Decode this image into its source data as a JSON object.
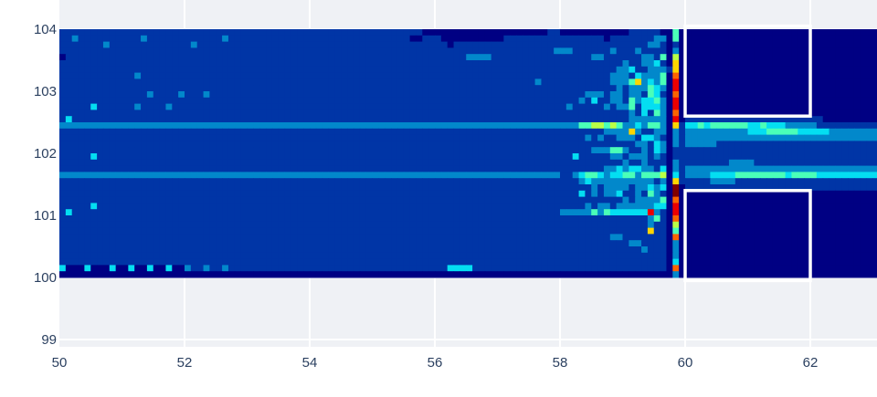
{
  "chart_data": {
    "type": "heatmap",
    "title": "",
    "xlabel": "",
    "ylabel": "",
    "xlim": [
      50,
      63.1
    ],
    "ylim": [
      98.8,
      104.5
    ],
    "x_ticks": [
      "50",
      "52",
      "54",
      "56",
      "58",
      "60",
      "62"
    ],
    "x_tick_values": [
      50,
      52,
      54,
      56,
      58,
      60,
      62
    ],
    "y_ticks": [
      "99",
      "100",
      "101",
      "102",
      "103",
      "104"
    ],
    "y_tick_values": [
      99,
      100,
      101,
      102,
      103,
      104
    ],
    "grid": true,
    "colorscale": "Jet",
    "zmin": 0,
    "zmax": 9,
    "x_start": 50,
    "dx": 0.1,
    "y_start": 104,
    "dy": -0.1,
    "z_rows": [
      "1111111111 1111111111 1111111111 1111111111 1111111111 1111111100 0000000000 0000000011 000000000001111100 4 0 0000000000000000 0000000000000000",
      "1121111111 1112111111 1111112111 1111111111 1111111111 1111110011 1000000000 0111111111 111111101111111220 4 0 0000000000000000 0000000000000000",
      "1111111211 1111111111 1211111111 1111111111 1111111111 1111111111 1101111111 1111111111 111111111111112210 1 0 0000000000000000 0000000000000000",
      "1111111111 1111111111 1111111111 1111111111 1111111111 1111111111 1111111111 1111111112 221111112111211110 2 0 0000000000000000 0000000000000000",
      "0111111111 1111111111 1111111111 1111111111 1111111111 1111111111 1111122221 1111111111 111112211111122140 5 0 0000000000000000 0000000000000000",
      "1111111111 1111111111 1111111111 1111111111 1111111111 1111111111 1111111111 1111111111 111111111121122310 6 0 0000000000000000 0000000000000000",
      "1111111111 1111111111 1111111111 1111111111 1111111111 1111111111 1111111111 1111111111 111111111223112221 6 0 0000000000000000 0000000000000000",
      "1111111111 1121111111 1111111111 1111111111 1111111111 1111111111 1111111111 1111111111 111111112221322240 7 0 0000000000000000 0000000000000000",
      "1111111111 1111111111 1111111111 1111111111 1111111111 1111111111 1111111111 1111112111 111111112224623240 8 0 0000000000000000 0000000000000000",
      "1111111111 1111111111 1111111111 1111111111 1111111111 1111111111 1111111111 1111111111 111111111212224320 8 0 0000000000000000 0000000000000000",
      "1111111111 1111211112 1112111111 1111111111 1111111111 1111111111 1111111111 1111111111 111122212212214310 7 0 0000000000000000 0000000000000000",
      "1111111111 1111111111 1111111111 1111111111 1111111111 1111111111 1111111111 1111111111 111213112214233420 8 0 0000000000000000 0000000000000000",
      "1111131111 1121111211 1111111111 1111111111 1111111111 1111111111 1111111111 1111111111 121111121224133320 8 0 0000000000000000 0000000000000000",
      "1111111111 1111111111 1111111111 1111111111 1111111111 1111111111 1111111111 1111111111 111111111112131420 7 0 0000000000000000 0000000000000000",
      "1311111111 1111111111 1111111111 1111111111 1111111111 1111111111 1111111111 1111111111 111111111112222220 8 0 1111111111111111 1111110000000000",
      "2222222222 2222222222 2222222222 2222222222 2222222222 2222222222 2222222222 2222222222 222445545422324420 6 1 3343444444334333 2222211111111111",
      "1111111111 1111111111 1111111111 1111111111 1111111111 1111111111 1111111111 1111111111 111111122226211220 2 1 2222222222333444 4433333222222222",
      "1111111111 1111111111 1111111111 1111111111 1111111111 1111111111 1111111111 1111111111 111121211222133210 2 1 2222222222222222 2222222222222222",
      "1111111111 1111111111 1111111111 1111111111 1111111111 1111111111 1111111111 1111111111 111111111111221320 2 1 2222211111111111 1111111111111111",
      "1111111111 1111111111 1111111111 1111111111 1111111111 1111111111 1111111111 1111111111 111112224421121320 1 1 1111111111111111 1111111111111111",
      "1111131111 1111111111 1111111111 1111111111 1111111111 1111111111 1111111111 1111111111 113111112212221210 1 1 1111111111111111 1111111111111111",
      "1111111111 1111111111 1111111111 1111111111 1111111111 1111111111 1111111111 1111111111 111111111121121110 2 1 1111111222211111 1111111111111111",
      "1111111111 1111111111 1111111111 1111111111 1111111111 1111111111 1111111111 1111111111 111111122323322130 2 1 2222222222222222 2222222222222222",
      "2222222222 2222222222 2222222222 2222222222 2222222222 2222222222 2222222222 2222222222 112344323344244450 3 1 2222333344444444 3444433333333333",
      "1111111111 1111111111 1111111111 1111111111 1111111111 1111111111 1111111111 1111111111 111232222222222120 6 1 1111222211111111 1111111111111111",
      "1111111111 1111111111 1111111111 1111111111 1111111111 1111111111 1111111111 1111111111 111112122221223230 9 0 1111111111111111 1111111111111111",
      "1111111111 1111111111 1111111111 1111111111 1111111111 1111111111 1111111111 1111111111 111312122311214210 9 0 0000000000000000 0000000000000000",
      "1111111111 1111111111 1111111111 1111111111 1111111111 1111111111 1111111111 1111111111 111111111121222240 7 0 0000000000000000 0000000000000000",
      "1111131111 1111111111 1111111111 1111111111 1111111111 1111111111 1111111111 1111111111 111121221222222330 8 0 0000000000000000 0000000000000000",
      "1311111111 1111111111 1111111111 1111111111 1111111111 1111111111 1111111111 1111111111 222224243333338210 8 0 0000000000000000 0000000000000000",
      "1111111111 1111111111 1111111111 1111111111 1111111111 1111111111 1111111111 1111111111 111111111111112410 7 0 0000000000000000 0000000000000000",
      "1111111111 1111111111 1111111111 1111111111 1111111111 1111111111 1111111111 1111111111 111111111111112110 5 0 0000000000000000 0000000000000000",
      "1111111111 1111111111 1111111111 1111111111 1111111111 1111111111 1111111111 1111111111 111111111111116110 4 0 0000000000000000 0000000000000000",
      "1111111111 1111111111 1111111111 1111111111 1111111111 1111111111 1111111111 1111111111 111111112211111110 7 0 0000000000000000 0000000000000000",
      "1111111111 1111111111 1111111111 1111111111 1111111111 1111111111 1111111111 1111111111 111111111112211110 2 0 0000000000000000 0000000000000000",
      "1111111111 1111111111 1111111111 1111111111 1111111111 1111111111 1111111111 1111111111 111111111111121110 2 0 0000000000000000 0000000000000000",
      "1111111111 1111111111 1111111111 1111111111 1111111111 1111111111 1111111111 1111111111 111111111111111110 2 0 0000000000000000 0000000000000000",
      "1111111111 1111111111 1111111111 1111111111 1111111111 1111111111 1111111111 1111111111 111111111111111110 3 0 0000000000000000 0000000000000000",
      "3000300030 0300300300 2112112111 1111111111 1111111111 1111111111 1133331111 1111111111 111111111111111110 7 0 0000000000000000 0000000000000000",
      "0000000000 0000000000 0000000000 0000000000 0000000000 0000000000 0000000000 0000000000 000000000000000000 2 0 0000000000000000 0000000000000000"
    ],
    "shapes": [
      {
        "type": "rect",
        "x0": 60,
        "x1": 62,
        "y0": 102.6,
        "y1": 104.05,
        "line_color": "#ffffff"
      },
      {
        "type": "rect",
        "x0": 60,
        "x1": 62,
        "y0": 99.95,
        "y1": 101.4,
        "line_color": "#ffffff"
      }
    ],
    "colors": {
      "plot_bg": "#eff1f5",
      "grid": "#ffffff",
      "tick_text": "#2a3f5f"
    }
  }
}
